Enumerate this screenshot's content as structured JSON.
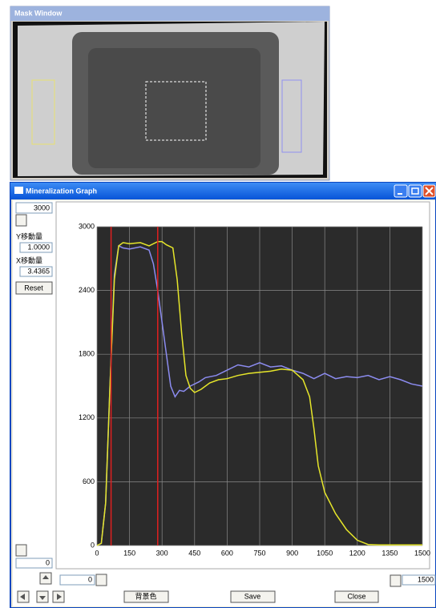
{
  "mask_window": {
    "title": "Mask Window"
  },
  "graph_window": {
    "title": "Mineralization Graph",
    "controls": {
      "y_max": "3000",
      "y_shift_label": "Y移動量",
      "y_shift": "1.0000",
      "x_shift_label": "X移動量",
      "x_shift": "3.4365",
      "reset": "Reset",
      "y_min": "0",
      "x_min": "0",
      "x_max": "1500"
    },
    "buttons": {
      "background": "背景色",
      "save": "Save",
      "close": "Close"
    }
  },
  "chart_data": {
    "type": "line",
    "xlim": [
      0,
      1500
    ],
    "xticks": [
      0,
      150,
      300,
      450,
      600,
      750,
      900,
      1050,
      1200,
      1350,
      1500
    ],
    "ylim": [
      0,
      3000
    ],
    "yticks": [
      0,
      600,
      1200,
      1800,
      2400,
      3000
    ],
    "grid": true,
    "markers": [
      65,
      280
    ],
    "marker_color": "#e02020",
    "series": [
      {
        "color": "#8c8cf0",
        "x": [
          0,
          20,
          40,
          60,
          80,
          100,
          120,
          150,
          200,
          240,
          260,
          280,
          300,
          320,
          340,
          360,
          380,
          400,
          430,
          470,
          500,
          550,
          600,
          650,
          700,
          750,
          800,
          850,
          900,
          950,
          1000,
          1050,
          1100,
          1150,
          1200,
          1250,
          1300,
          1350,
          1400,
          1450,
          1500
        ],
        "values": [
          0,
          20,
          400,
          1500,
          2550,
          2820,
          2800,
          2790,
          2810,
          2780,
          2650,
          2400,
          2100,
          1800,
          1500,
          1400,
          1460,
          1450,
          1500,
          1540,
          1580,
          1600,
          1650,
          1700,
          1680,
          1720,
          1680,
          1690,
          1650,
          1620,
          1570,
          1620,
          1570,
          1590,
          1580,
          1600,
          1560,
          1590,
          1560,
          1520,
          1500
        ]
      },
      {
        "color": "#e6e62a",
        "x": [
          0,
          20,
          40,
          60,
          80,
          100,
          120,
          150,
          200,
          240,
          280,
          300,
          320,
          350,
          370,
          390,
          410,
          430,
          450,
          480,
          520,
          560,
          600,
          650,
          700,
          750,
          800,
          850,
          900,
          950,
          980,
          1000,
          1020,
          1050,
          1100,
          1150,
          1200,
          1250,
          1300,
          1500
        ],
        "values": [
          0,
          20,
          400,
          1500,
          2500,
          2820,
          2850,
          2840,
          2850,
          2820,
          2860,
          2860,
          2830,
          2800,
          2500,
          2000,
          1600,
          1480,
          1440,
          1470,
          1530,
          1560,
          1570,
          1600,
          1620,
          1630,
          1640,
          1660,
          1650,
          1560,
          1400,
          1100,
          750,
          500,
          300,
          150,
          50,
          10,
          5,
          5
        ]
      }
    ]
  }
}
